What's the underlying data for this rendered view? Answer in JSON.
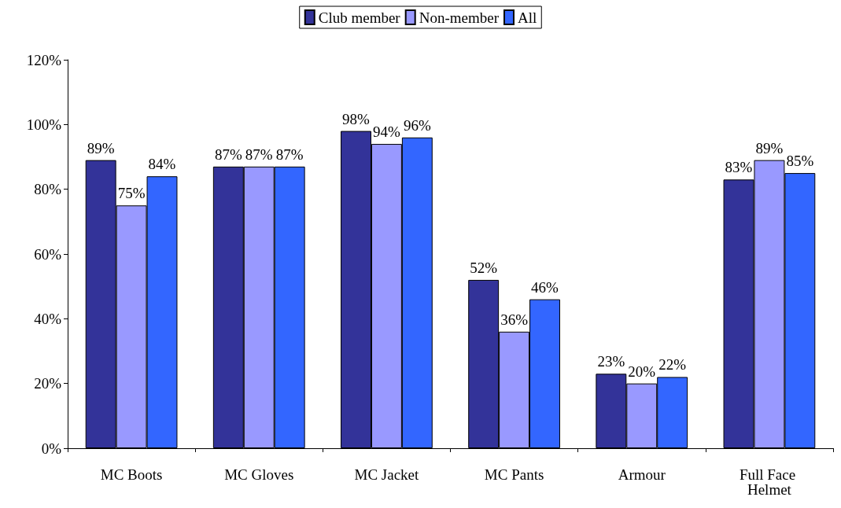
{
  "chart_data": {
    "type": "bar",
    "categories": [
      "MC Boots",
      "MC Gloves",
      "MC Jacket",
      "MC Pants",
      "Armour",
      "Full Face Helmet"
    ],
    "series": [
      {
        "name": "Club member",
        "color": "#333399",
        "values": [
          89,
          87,
          98,
          52,
          23,
          83
        ],
        "value_labels": [
          "89%",
          "87%",
          "98%",
          "52%",
          "23%",
          "83%"
        ]
      },
      {
        "name": "Non-member",
        "color": "#9999ff",
        "values": [
          75,
          87,
          94,
          36,
          20,
          89
        ],
        "value_labels": [
          "75%",
          "87%",
          "94%",
          "36%",
          "20%",
          "89%"
        ]
      },
      {
        "name": "All",
        "color": "#3366ff",
        "values": [
          84,
          87,
          96,
          46,
          22,
          85
        ],
        "value_labels": [
          "84%",
          "87%",
          "96%",
          "46%",
          "22%",
          "85%"
        ]
      }
    ],
    "ylim": [
      0,
      120
    ],
    "yticks": [
      {
        "value": 0,
        "label": "0%"
      },
      {
        "value": 20,
        "label": "20%"
      },
      {
        "value": 40,
        "label": "40%"
      },
      {
        "value": 60,
        "label": "60%"
      },
      {
        "value": 80,
        "label": "80%"
      },
      {
        "value": 100,
        "label": "100%"
      },
      {
        "value": 120,
        "label": "120%"
      }
    ],
    "grid": false,
    "legend": "top"
  }
}
